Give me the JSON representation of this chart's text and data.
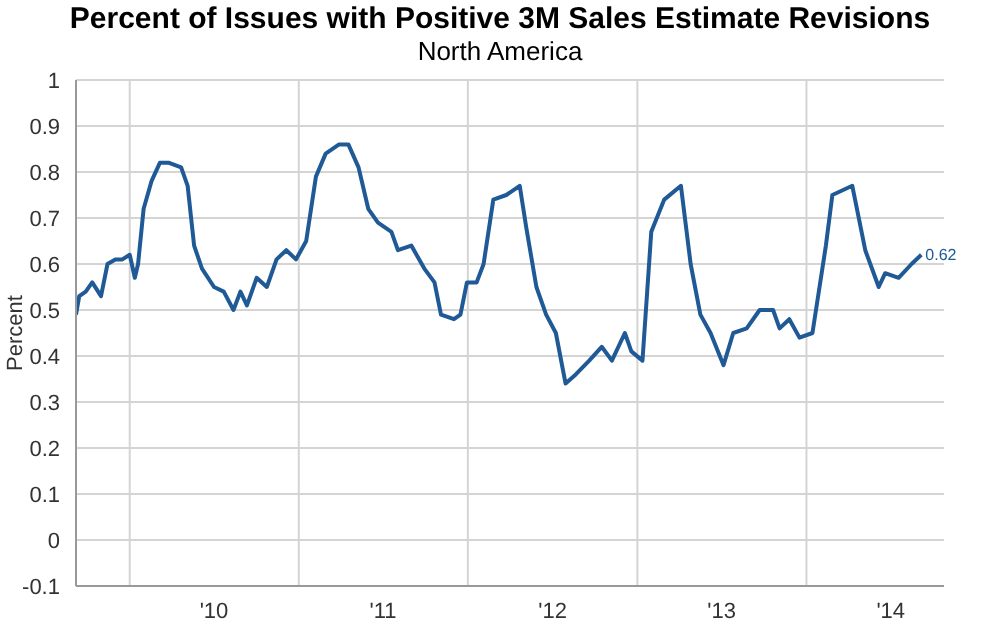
{
  "chart_data": {
    "type": "line",
    "title": "Percent of Issues with Positive 3M Sales Estimate Revisions",
    "subtitle": "North America",
    "ylabel": "Percent",
    "x": [
      "2009-09-07",
      "2009-09-14",
      "2009-09-28",
      "2009-10-12",
      "2009-10-31",
      "2009-11-14",
      "2009-12-01",
      "2009-12-16",
      "2010-01-01",
      "2010-01-12",
      "2010-01-19",
      "2010-01-31",
      "2010-02-17",
      "2010-03-07",
      "2010-03-27",
      "2010-04-22",
      "2010-05-06",
      "2010-05-20",
      "2010-06-06",
      "2010-07-02",
      "2010-07-23",
      "2010-08-13",
      "2010-08-28",
      "2010-09-11",
      "2010-10-02",
      "2010-10-24",
      "2010-11-14",
      "2010-12-05",
      "2010-12-26",
      "2011-01-17",
      "2011-02-07",
      "2011-02-28",
      "2011-03-29",
      "2011-04-18",
      "2011-05-10",
      "2011-05-31",
      "2011-06-21",
      "2011-07-20",
      "2011-08-03",
      "2011-09-01",
      "2011-09-29",
      "2011-10-21",
      "2011-11-04",
      "2011-12-02",
      "2011-12-16",
      "2011-12-30",
      "2012-01-20",
      "2012-02-04",
      "2012-02-25",
      "2012-03-24",
      "2012-04-22",
      "2012-05-06",
      "2012-05-28",
      "2012-06-18",
      "2012-07-09",
      "2012-07-30",
      "2012-08-21",
      "2012-09-19",
      "2012-10-16",
      "2012-11-07",
      "2012-12-05",
      "2012-12-19",
      "2013-01-12",
      "2013-01-31",
      "2013-02-28",
      "2013-04-05",
      "2013-04-26",
      "2013-05-17",
      "2013-06-08",
      "2013-07-06",
      "2013-07-27",
      "2013-08-25",
      "2013-09-22",
      "2013-10-21",
      "2013-11-04",
      "2013-11-25",
      "2013-12-17",
      "2014-01-14",
      "2014-02-12",
      "2014-02-26",
      "2014-04-10",
      "2014-05-08",
      "2014-06-06",
      "2014-06-20",
      "2014-07-19",
      "2014-08-16",
      "2014-09-06"
    ],
    "series": [
      {
        "color": "#1f5a96",
        "values": [
          0.49,
          0.53,
          0.54,
          0.56,
          0.53,
          0.6,
          0.61,
          0.61,
          0.62,
          0.57,
          0.6,
          0.72,
          0.78,
          0.82,
          0.82,
          0.81,
          0.77,
          0.64,
          0.59,
          0.55,
          0.54,
          0.5,
          0.54,
          0.51,
          0.57,
          0.55,
          0.61,
          0.63,
          0.61,
          0.65,
          0.79,
          0.84,
          0.86,
          0.86,
          0.81,
          0.72,
          0.69,
          0.67,
          0.63,
          0.64,
          0.59,
          0.56,
          0.49,
          0.48,
          0.49,
          0.56,
          0.56,
          0.6,
          0.74,
          0.75,
          0.77,
          0.68,
          0.55,
          0.49,
          0.45,
          0.34,
          0.36,
          0.39,
          0.42,
          0.39,
          0.45,
          0.41,
          0.39,
          0.67,
          0.74,
          0.77,
          0.6,
          0.49,
          0.45,
          0.38,
          0.45,
          0.46,
          0.5,
          0.5,
          0.46,
          0.48,
          0.44,
          0.45,
          0.64,
          0.75,
          0.77,
          0.63,
          0.55,
          0.58,
          0.57,
          0.6,
          0.62
        ]
      }
    ],
    "annotations": [
      {
        "text": "0.62",
        "x": "2014-09-06",
        "y": 0.62
      }
    ],
    "xlim": [
      "2009-09-07",
      "2014-10-25"
    ],
    "xticks": [
      {
        "value": "2010-01-01",
        "label": null
      },
      {
        "value": "2010-07-02",
        "label": "'10"
      },
      {
        "value": "2011-01-01",
        "label": null
      },
      {
        "value": "2011-07-02",
        "label": "'11"
      },
      {
        "value": "2012-01-01",
        "label": null
      },
      {
        "value": "2012-07-02",
        "label": "'12"
      },
      {
        "value": "2013-01-01",
        "label": null
      },
      {
        "value": "2013-07-02",
        "label": "'13"
      },
      {
        "value": "2014-01-01",
        "label": null
      },
      {
        "value": "2014-07-02",
        "label": "'14"
      }
    ],
    "ylim": [
      -0.1,
      1
    ],
    "yticks": [
      -0.1,
      0,
      0.1,
      0.2,
      0.3,
      0.4,
      0.5,
      0.6,
      0.7,
      0.8,
      0.9,
      1
    ],
    "grid": true,
    "legend": false,
    "marker": "none",
    "line_style": "solid"
  }
}
